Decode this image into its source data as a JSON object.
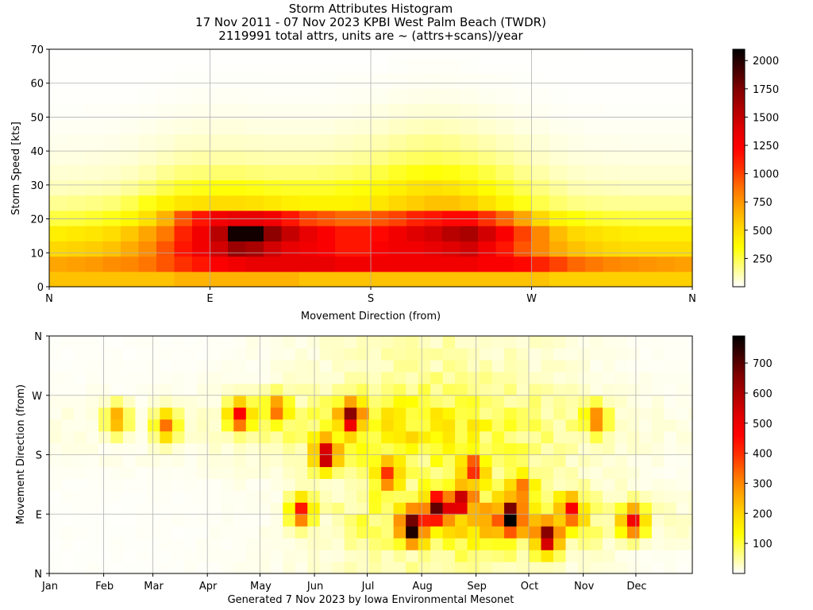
{
  "title": {
    "line1": "Storm Attributes Histogram",
    "line2": "17 Nov 2011 - 07 Nov 2023 KPBI West Palm Beach (TWDR)",
    "line3": "2119991 total attrs, units are ~ (attrs+scans)/year"
  },
  "footer": "Generated 7 Nov 2023 by Iowa Environmental Mesonet",
  "colormap": [
    "#ffffff",
    "#ffff80",
    "#ffff00",
    "#ffd700",
    "#ffa500",
    "#ff7000",
    "#ff3000",
    "#ff0000",
    "#e00000",
    "#b00000",
    "#800000",
    "#400000",
    "#000000"
  ],
  "chart_data": [
    {
      "type": "heatmap",
      "xlabel": "Movement Direction (from)",
      "ylabel": "Storm Speed [kts]",
      "x_ticks": [
        "N",
        "E",
        "S",
        "W",
        "N"
      ],
      "x_range": [
        0,
        360
      ],
      "ylim": [
        0,
        70
      ],
      "y_ticks": [
        0,
        10,
        20,
        30,
        40,
        50,
        60,
        70
      ],
      "colorbar_ticks": [
        250,
        500,
        750,
        1000,
        1250,
        1500,
        1750,
        2000
      ],
      "colorbar_range": [
        0,
        2100
      ],
      "grid": true,
      "x_bins": 36,
      "y_bins": [
        [
          0,
          4.5
        ],
        [
          4.5,
          9
        ],
        [
          9,
          13.5
        ],
        [
          13.5,
          18
        ],
        [
          18,
          22.5
        ],
        [
          22.5,
          27
        ],
        [
          27,
          31.5
        ],
        [
          31.5,
          36
        ],
        [
          36,
          40.5
        ],
        [
          40.5,
          45
        ],
        [
          45,
          49.5
        ],
        [
          49.5,
          54
        ],
        [
          54,
          58.5
        ],
        [
          58.5,
          63
        ],
        [
          63,
          67.5
        ],
        [
          67.5,
          72
        ]
      ],
      "profiles": {
        "speed_rows": [
          [
            600,
            600,
            600,
            600,
            600,
            600,
            600,
            650,
            650,
            650,
            650,
            650,
            650,
            650,
            600,
            600,
            600,
            600,
            600,
            600,
            600,
            600,
            600,
            600,
            600,
            600,
            600,
            600,
            550,
            550,
            550,
            550,
            550,
            550,
            550,
            550
          ],
          [
            700,
            720,
            740,
            780,
            800,
            860,
            950,
            1050,
            1150,
            1250,
            1300,
            1350,
            1350,
            1350,
            1350,
            1350,
            1300,
            1300,
            1300,
            1300,
            1300,
            1300,
            1300,
            1300,
            1250,
            1250,
            1200,
            1100,
            1000,
            900,
            850,
            800,
            780,
            760,
            740,
            720
          ],
          [
            520,
            540,
            560,
            600,
            680,
            780,
            950,
            1150,
            1300,
            1450,
            1650,
            1600,
            1450,
            1350,
            1300,
            1250,
            1150,
            1150,
            1250,
            1300,
            1300,
            1350,
            1400,
            1450,
            1300,
            1150,
            950,
            800,
            680,
            600,
            550,
            520,
            500,
            500,
            500,
            500
          ],
          [
            420,
            440,
            460,
            500,
            580,
            700,
            850,
            1100,
            1300,
            1550,
            2050,
            2050,
            1700,
            1500,
            1350,
            1250,
            1150,
            1150,
            1200,
            1300,
            1400,
            1450,
            1550,
            1600,
            1450,
            1250,
            1000,
            800,
            620,
            520,
            480,
            450,
            430,
            420,
            420,
            420
          ],
          [
            260,
            270,
            290,
            320,
            380,
            480,
            650,
            950,
            1150,
            1300,
            1350,
            1350,
            1300,
            1150,
            1000,
            950,
            900,
            900,
            950,
            1000,
            1100,
            1150,
            1200,
            1200,
            1050,
            900,
            700,
            520,
            400,
            340,
            300,
            280,
            270,
            260,
            260,
            260
          ],
          [
            150,
            160,
            170,
            190,
            240,
            320,
            400,
            460,
            480,
            500,
            500,
            480,
            450,
            420,
            400,
            400,
            400,
            420,
            460,
            520,
            560,
            600,
            600,
            560,
            480,
            400,
            320,
            250,
            200,
            170,
            160,
            150,
            150,
            150,
            150,
            150
          ],
          [
            90,
            95,
            100,
            110,
            140,
            190,
            250,
            300,
            320,
            340,
            340,
            330,
            310,
            300,
            300,
            300,
            320,
            340,
            380,
            420,
            460,
            480,
            460,
            420,
            360,
            300,
            240,
            180,
            140,
            110,
            100,
            95,
            90,
            90,
            90,
            90
          ],
          [
            60,
            62,
            65,
            70,
            85,
            110,
            150,
            180,
            190,
            200,
            200,
            190,
            180,
            180,
            180,
            190,
            200,
            220,
            260,
            300,
            330,
            340,
            330,
            300,
            260,
            210,
            160,
            120,
            90,
            75,
            65,
            62,
            60,
            60,
            60,
            60
          ],
          [
            40,
            42,
            44,
            48,
            55,
            70,
            90,
            110,
            120,
            120,
            120,
            115,
            110,
            110,
            110,
            115,
            125,
            140,
            170,
            200,
            220,
            230,
            220,
            200,
            170,
            140,
            110,
            80,
            60,
            50,
            45,
            42,
            40,
            40,
            40,
            40
          ],
          [
            25,
            26,
            28,
            30,
            35,
            45,
            55,
            70,
            75,
            75,
            75,
            70,
            68,
            68,
            68,
            70,
            80,
            90,
            110,
            130,
            150,
            160,
            150,
            130,
            110,
            90,
            70,
            55,
            40,
            32,
            28,
            26,
            25,
            25,
            25,
            25
          ],
          [
            15,
            16,
            17,
            18,
            22,
            28,
            35,
            42,
            45,
            45,
            45,
            42,
            40,
            40,
            40,
            42,
            48,
            55,
            65,
            80,
            90,
            95,
            90,
            80,
            65,
            55,
            42,
            32,
            25,
            20,
            17,
            16,
            15,
            15,
            15,
            15
          ],
          [
            8,
            8,
            9,
            10,
            12,
            15,
            20,
            25,
            26,
            26,
            26,
            25,
            24,
            24,
            24,
            25,
            28,
            32,
            40,
            48,
            55,
            58,
            55,
            48,
            40,
            32,
            25,
            18,
            14,
            11,
            9,
            8,
            8,
            8,
            8,
            8
          ],
          [
            4,
            4,
            5,
            5,
            6,
            8,
            11,
            14,
            15,
            15,
            15,
            14,
            13,
            13,
            13,
            14,
            16,
            18,
            22,
            27,
            31,
            33,
            31,
            27,
            22,
            18,
            14,
            10,
            8,
            6,
            5,
            4,
            4,
            4,
            4,
            4
          ],
          [
            2,
            2,
            2,
            3,
            3,
            4,
            6,
            8,
            8,
            8,
            8,
            8,
            7,
            7,
            7,
            8,
            9,
            10,
            12,
            15,
            17,
            18,
            17,
            15,
            12,
            10,
            8,
            6,
            4,
            3,
            3,
            2,
            2,
            2,
            2,
            2
          ],
          [
            1,
            1,
            1,
            1,
            2,
            2,
            3,
            4,
            4,
            4,
            4,
            4,
            4,
            4,
            4,
            4,
            5,
            5,
            6,
            8,
            9,
            10,
            9,
            8,
            6,
            5,
            4,
            3,
            2,
            2,
            1,
            1,
            1,
            1,
            1,
            1
          ],
          [
            0,
            0,
            0,
            0,
            1,
            1,
            1,
            2,
            2,
            2,
            2,
            2,
            2,
            2,
            2,
            2,
            2,
            3,
            3,
            4,
            5,
            5,
            5,
            4,
            3,
            3,
            2,
            1,
            1,
            1,
            0,
            0,
            0,
            0,
            0,
            0
          ]
        ]
      }
    },
    {
      "type": "heatmap",
      "xlabel": "",
      "ylabel": "Movement Direction (from)",
      "x_ticks": [
        "Jan",
        "Feb",
        "Mar",
        "Apr",
        "May",
        "Jun",
        "Jul",
        "Aug",
        "Sep",
        "Oct",
        "Nov",
        "Dec"
      ],
      "x_tick_weeks": [
        0,
        4.43,
        8.43,
        12.86,
        17.14,
        21.57,
        25.86,
        30.29,
        34.71,
        39,
        43.43,
        47.71
      ],
      "x_range_weeks": [
        0,
        52.3
      ],
      "y_ticks": [
        "N",
        "E",
        "S",
        "W",
        "N"
      ],
      "y_range": [
        0,
        360
      ],
      "colorbar_ticks": [
        100,
        200,
        300,
        400,
        500,
        600,
        700
      ],
      "colorbar_range": [
        0,
        790
      ],
      "grid": true,
      "direction_bins": 20,
      "week_bins": 53,
      "peaks": [
        {
          "week": 37,
          "dir": 85,
          "value": 760
        },
        {
          "week": 29,
          "dir": 68,
          "value": 720
        },
        {
          "week": 40,
          "dir": 55,
          "value": 650
        },
        {
          "week": 22,
          "dir": 180,
          "value": 620
        },
        {
          "week": 24,
          "dir": 240,
          "value": 560
        },
        {
          "week": 15,
          "dir": 240,
          "value": 500
        },
        {
          "week": 33,
          "dir": 110,
          "value": 500
        },
        {
          "week": 47,
          "dir": 80,
          "value": 500
        },
        {
          "week": 20,
          "dir": 95,
          "value": 480
        },
        {
          "week": 31,
          "dir": 100,
          "value": 620
        },
        {
          "week": 42,
          "dir": 95,
          "value": 450
        },
        {
          "week": 34,
          "dir": 160,
          "value": 380
        },
        {
          "week": 9,
          "dir": 225,
          "value": 350
        },
        {
          "week": 5,
          "dir": 235,
          "value": 300
        },
        {
          "week": 27,
          "dir": 150,
          "value": 380
        },
        {
          "week": 38,
          "dir": 130,
          "value": 300
        },
        {
          "week": 44,
          "dir": 235,
          "value": 320
        },
        {
          "week": 18,
          "dir": 250,
          "value": 340
        }
      ]
    }
  ]
}
